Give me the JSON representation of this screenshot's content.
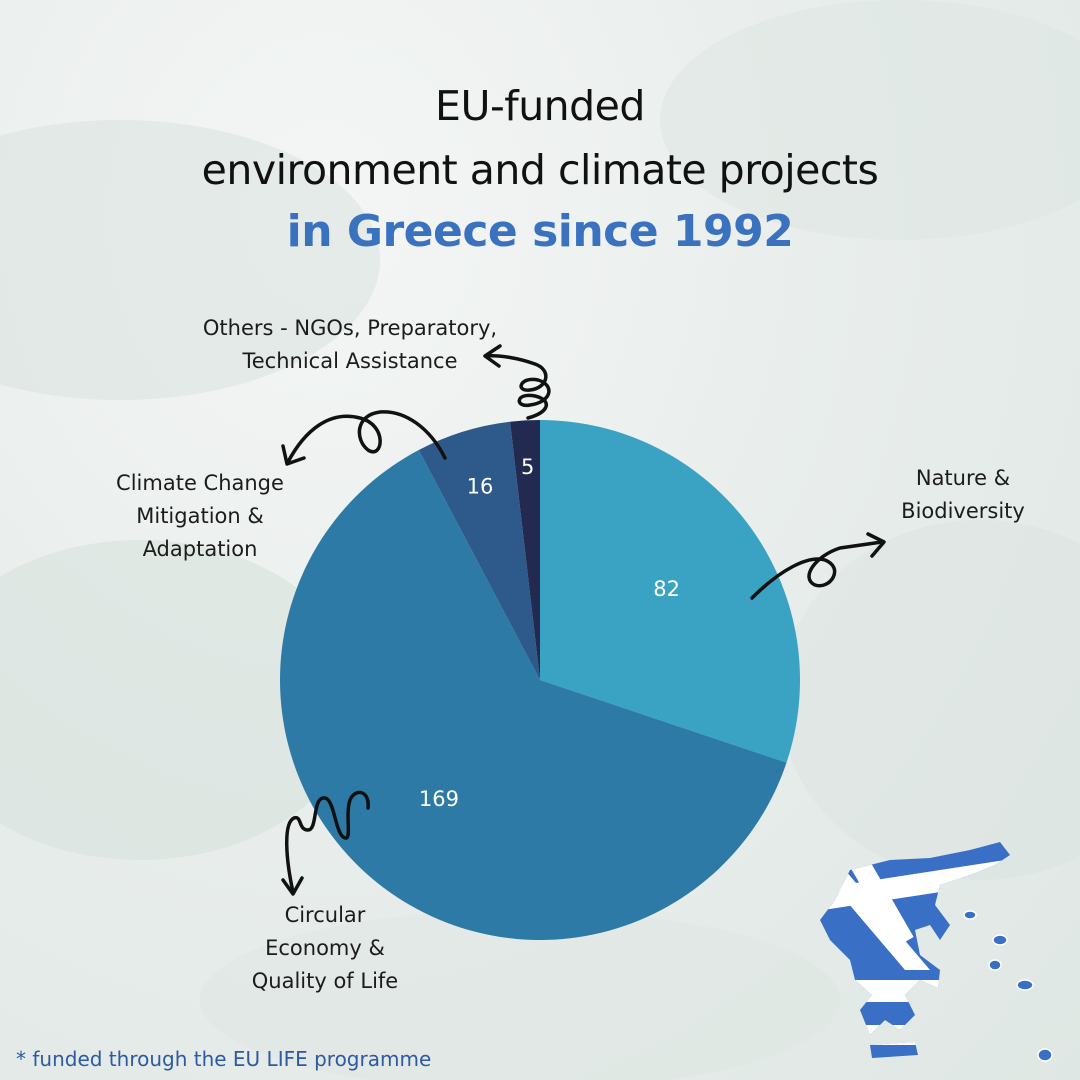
{
  "title": {
    "line1": "EU-funded",
    "line2": "environment and climate projects",
    "line3": "in Greece since 1992"
  },
  "chart_data": {
    "type": "pie",
    "slices": [
      {
        "label": "Nature & Biodiversity",
        "value": 82,
        "color": "#3aa3c4"
      },
      {
        "label": "Circular Economy & Quality of Life",
        "value": 169,
        "color": "#2e7aa7"
      },
      {
        "label": "Climate Change Mitigation & Adaptation",
        "value": 16,
        "color": "#2d5a8a"
      },
      {
        "label": "Others - NGOs, Preparatory, Technical Assistance",
        "value": 5,
        "color": "#232a52"
      }
    ],
    "value_labels": [
      "82",
      "169",
      "16",
      "5"
    ]
  },
  "labels": {
    "nature": [
      "Nature &",
      "Biodiversity"
    ],
    "circular": [
      "Circular",
      "Economy &",
      "Quality of Life"
    ],
    "climate": [
      "Climate Change",
      "Mitigation &",
      "Adaptation"
    ],
    "others": [
      "Others - NGOs, Preparatory,",
      "Technical Assistance"
    ]
  },
  "footnote": "* funded through the EU LIFE programme",
  "map_colors": {
    "blue": "#3a6fc6",
    "white": "#ffffff"
  }
}
